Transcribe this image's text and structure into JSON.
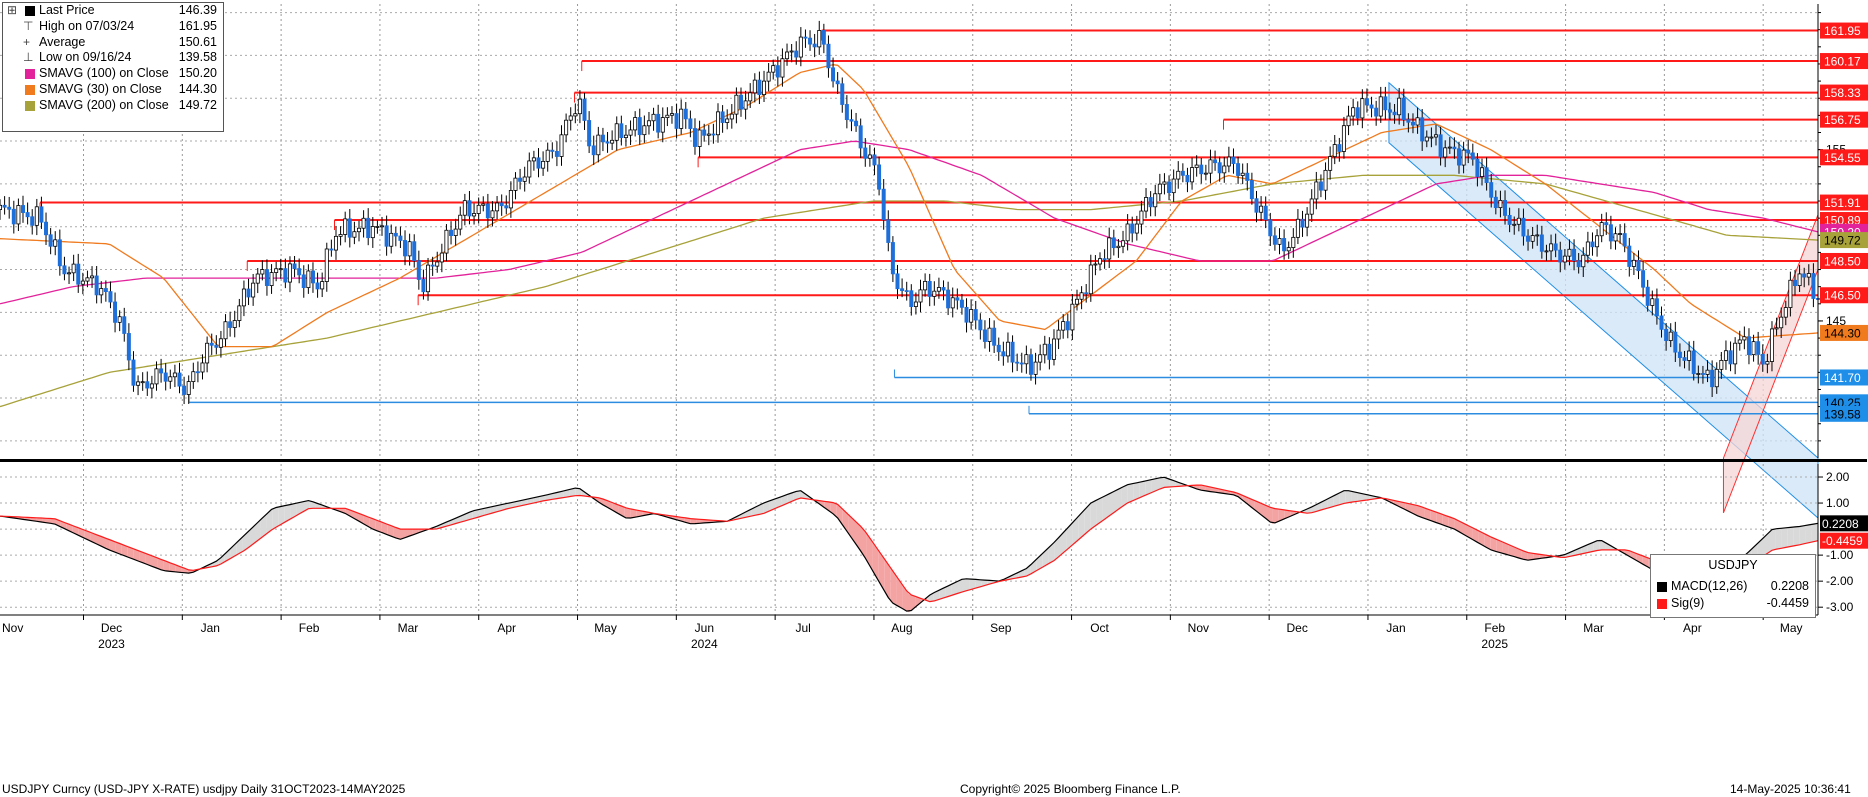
{
  "chart_data": {
    "type": "candlestick",
    "instrument": "USDJPY",
    "legend": {
      "last_price": {
        "label": "Last Price",
        "value": "146.39"
      },
      "high": {
        "label": "High on 07/03/24",
        "value": "161.95"
      },
      "average": {
        "label": "Average",
        "value": "150.61"
      },
      "low": {
        "label": "Low on 09/16/24",
        "value": "139.58"
      },
      "sma100": {
        "label": "SMAVG (100)  on Close",
        "value": "150.20",
        "color": "#e2229a"
      },
      "sma30": {
        "label": "SMAVG (30)  on Close",
        "value": "144.30",
        "color": "#f07a1e"
      },
      "sma200": {
        "label": "SMAVG (200)  on Close",
        "value": "149.72",
        "color": "#a7a23a"
      }
    },
    "price_axis": {
      "ylim": [
        137.0,
        163.5
      ],
      "ticks": [
        "145",
        "155"
      ],
      "tags": [
        {
          "label": "161.95",
          "value": 161.95,
          "color": "#ff1a1a",
          "text_color": "#ffffff"
        },
        {
          "label": "160.17",
          "value": 160.17,
          "color": "#ff1a1a",
          "text_color": "#ffffff"
        },
        {
          "label": "158.33",
          "value": 158.33,
          "color": "#ff1a1a",
          "text_color": "#ffffff"
        },
        {
          "label": "156.75",
          "value": 156.75,
          "color": "#ff1a1a",
          "text_color": "#ffffff"
        },
        {
          "label": "154.55",
          "value": 154.55,
          "color": "#ff1a1a",
          "text_color": "#ffffff"
        },
        {
          "label": "151.91",
          "value": 151.91,
          "color": "#ff1a1a",
          "text_color": "#ffffff"
        },
        {
          "label": "150.89",
          "value": 150.89,
          "color": "#ff1a1a",
          "text_color": "#ffffff"
        },
        {
          "label": "150.20",
          "value": 150.2,
          "color": "#e2229a",
          "text_color": "#ffffff"
        },
        {
          "label": "149.72",
          "value": 149.72,
          "color": "#a7a23a",
          "text_color": "#000000"
        },
        {
          "label": "148.50",
          "value": 148.5,
          "color": "#ff1a1a",
          "text_color": "#ffffff"
        },
        {
          "label": "146.50",
          "value": 146.5,
          "color": "#ff1a1a",
          "text_color": "#ffffff"
        },
        {
          "label": "144.30",
          "value": 144.3,
          "color": "#f07a1e",
          "text_color": "#000000"
        },
        {
          "label": "141.70",
          "value": 141.7,
          "color": "#1e8ee8",
          "text_color": "#ffffff"
        },
        {
          "label": "140.25",
          "value": 140.25,
          "color": "#1e8ee8",
          "text_color": "#000000"
        },
        {
          "label": "139.58",
          "value": 139.58,
          "color": "#1e8ee8",
          "text_color": "#000000"
        }
      ]
    },
    "horizontal_levels": [
      {
        "value": 161.95,
        "from": 0.452,
        "color": "#ff1a1a"
      },
      {
        "value": 160.17,
        "from": 0.32,
        "color": "#ff1a1a"
      },
      {
        "value": 158.33,
        "from": 0.316,
        "color": "#ff1a1a"
      },
      {
        "value": 156.75,
        "from": 0.673,
        "color": "#ff1a1a"
      },
      {
        "value": 154.55,
        "from": 0.384,
        "color": "#ff1a1a"
      },
      {
        "value": 151.91,
        "from": 0.022,
        "color": "#ff1a1a"
      },
      {
        "value": 150.89,
        "from": 0.184,
        "color": "#ff1a1a"
      },
      {
        "value": 148.5,
        "from": 0.136,
        "color": "#ff1a1a"
      },
      {
        "value": 146.5,
        "from": 0.23,
        "color": "#ff1a1a"
      },
      {
        "value": 141.7,
        "from": 0.492,
        "color": "#2b8ce0"
      },
      {
        "value": 140.25,
        "from": 0.104,
        "color": "#2b8ce0"
      },
      {
        "value": 139.58,
        "from": 0.566,
        "color": "#2b8ce0"
      }
    ],
    "channels": [
      {
        "color": "#1e8ee8",
        "fill": "#cfe3f7",
        "p1": [
          0.764,
          158.9
        ],
        "p2": [
          1.0,
          137.0
        ],
        "width": 3.5
      },
      {
        "color": "#ff3030",
        "fill": "#f7d6d6",
        "p1": [
          0.948,
          137.0
        ],
        "p2": [
          1.0,
          151.2
        ],
        "width": 3.2
      }
    ],
    "x_axis": {
      "month_labels": [
        "Nov",
        "Dec",
        "Jan",
        "Feb",
        "Mar",
        "Apr",
        "May",
        "Jun",
        "Jul",
        "Aug",
        "Sep",
        "Oct",
        "Nov",
        "Dec",
        "Jan",
        "Feb",
        "Mar",
        "Apr",
        "May"
      ],
      "year_labels": [
        {
          "label": "2023",
          "month_index": 1
        },
        {
          "label": "2024",
          "month_index": 7
        },
        {
          "label": "2025",
          "month_index": 15
        }
      ]
    },
    "price_anchors": [
      [
        0.0,
        151.5
      ],
      [
        0.022,
        151.0
      ],
      [
        0.035,
        148.0
      ],
      [
        0.055,
        147.0
      ],
      [
        0.066,
        145.0
      ],
      [
        0.075,
        141.0
      ],
      [
        0.09,
        142.0
      ],
      [
        0.103,
        141.0
      ],
      [
        0.112,
        143.0
      ],
      [
        0.125,
        144.5
      ],
      [
        0.14,
        147.5
      ],
      [
        0.16,
        148.0
      ],
      [
        0.175,
        147.0
      ],
      [
        0.185,
        150.2
      ],
      [
        0.205,
        150.5
      ],
      [
        0.225,
        149.3
      ],
      [
        0.232,
        147.0
      ],
      [
        0.242,
        149.0
      ],
      [
        0.255,
        151.5
      ],
      [
        0.275,
        151.5
      ],
      [
        0.29,
        154.0
      ],
      [
        0.305,
        154.8
      ],
      [
        0.318,
        158.0
      ],
      [
        0.325,
        155.0
      ],
      [
        0.335,
        155.7
      ],
      [
        0.355,
        156.5
      ],
      [
        0.375,
        157.0
      ],
      [
        0.384,
        155.5
      ],
      [
        0.4,
        157.0
      ],
      [
        0.42,
        159.0
      ],
      [
        0.44,
        161.2
      ],
      [
        0.452,
        161.5
      ],
      [
        0.46,
        158.5
      ],
      [
        0.475,
        155.0
      ],
      [
        0.483,
        153.5
      ],
      [
        0.49,
        148.0
      ],
      [
        0.5,
        146.0
      ],
      [
        0.51,
        147.0
      ],
      [
        0.52,
        146.5
      ],
      [
        0.532,
        145.5
      ],
      [
        0.548,
        143.5
      ],
      [
        0.566,
        142.3
      ],
      [
        0.578,
        143.5
      ],
      [
        0.592,
        146.0
      ],
      [
        0.605,
        148.8
      ],
      [
        0.62,
        150.0
      ],
      [
        0.635,
        152.5
      ],
      [
        0.65,
        153.5
      ],
      [
        0.665,
        154.0
      ],
      [
        0.68,
        154.2
      ],
      [
        0.69,
        152.0
      ],
      [
        0.705,
        149.0
      ],
      [
        0.715,
        150.5
      ],
      [
        0.73,
        154.0
      ],
      [
        0.745,
        157.5
      ],
      [
        0.755,
        157.5
      ],
      [
        0.77,
        157.3
      ],
      [
        0.78,
        156.2
      ],
      [
        0.795,
        155.0
      ],
      [
        0.81,
        154.5
      ],
      [
        0.825,
        151.5
      ],
      [
        0.84,
        150.0
      ],
      [
        0.855,
        149.0
      ],
      [
        0.87,
        148.5
      ],
      [
        0.88,
        150.5
      ],
      [
        0.89,
        150.0
      ],
      [
        0.9,
        148.0
      ],
      [
        0.91,
        145.5
      ],
      [
        0.92,
        143.5
      ],
      [
        0.93,
        142.5
      ],
      [
        0.94,
        141.5
      ],
      [
        0.95,
        143.0
      ],
      [
        0.96,
        144.0
      ],
      [
        0.97,
        142.5
      ],
      [
        0.98,
        145.5
      ],
      [
        0.99,
        148.0
      ],
      [
        0.996,
        147.0
      ],
      [
        1.0,
        146.39
      ]
    ],
    "sma30_anchors": [
      [
        0.0,
        149.8
      ],
      [
        0.06,
        149.5
      ],
      [
        0.09,
        147.5
      ],
      [
        0.12,
        143.5
      ],
      [
        0.15,
        143.5
      ],
      [
        0.18,
        145.5
      ],
      [
        0.22,
        147.5
      ],
      [
        0.26,
        150.0
      ],
      [
        0.3,
        152.5
      ],
      [
        0.34,
        155.0
      ],
      [
        0.38,
        156.0
      ],
      [
        0.41,
        157.5
      ],
      [
        0.44,
        159.5
      ],
      [
        0.46,
        160.0
      ],
      [
        0.475,
        158.5
      ],
      [
        0.5,
        154.0
      ],
      [
        0.525,
        148.0
      ],
      [
        0.55,
        145.0
      ],
      [
        0.575,
        144.5
      ],
      [
        0.6,
        146.5
      ],
      [
        0.625,
        148.5
      ],
      [
        0.65,
        152.0
      ],
      [
        0.675,
        153.5
      ],
      [
        0.7,
        153.0
      ],
      [
        0.73,
        154.5
      ],
      [
        0.76,
        156.0
      ],
      [
        0.79,
        156.5
      ],
      [
        0.82,
        155.0
      ],
      [
        0.85,
        153.0
      ],
      [
        0.88,
        150.5
      ],
      [
        0.91,
        148.0
      ],
      [
        0.93,
        146.0
      ],
      [
        0.96,
        144.0
      ],
      [
        1.0,
        144.3
      ]
    ],
    "sma100_anchors": [
      [
        0.0,
        146.0
      ],
      [
        0.04,
        147.0
      ],
      [
        0.08,
        147.5
      ],
      [
        0.12,
        147.5
      ],
      [
        0.16,
        147.5
      ],
      [
        0.2,
        147.5
      ],
      [
        0.24,
        147.5
      ],
      [
        0.28,
        148.0
      ],
      [
        0.32,
        149.0
      ],
      [
        0.36,
        151.0
      ],
      [
        0.4,
        153.0
      ],
      [
        0.44,
        155.0
      ],
      [
        0.47,
        155.5
      ],
      [
        0.5,
        155.0
      ],
      [
        0.54,
        153.5
      ],
      [
        0.58,
        151.0
      ],
      [
        0.62,
        149.5
      ],
      [
        0.66,
        148.5
      ],
      [
        0.7,
        148.5
      ],
      [
        0.73,
        150.0
      ],
      [
        0.76,
        151.5
      ],
      [
        0.79,
        153.0
      ],
      [
        0.82,
        153.5
      ],
      [
        0.85,
        153.5
      ],
      [
        0.88,
        153.0
      ],
      [
        0.91,
        152.5
      ],
      [
        0.94,
        151.5
      ],
      [
        0.97,
        151.0
      ],
      [
        1.0,
        150.2
      ]
    ],
    "sma200_anchors": [
      [
        0.0,
        140.0
      ],
      [
        0.06,
        142.0
      ],
      [
        0.12,
        143.0
      ],
      [
        0.18,
        144.0
      ],
      [
        0.24,
        145.5
      ],
      [
        0.3,
        147.0
      ],
      [
        0.36,
        149.0
      ],
      [
        0.42,
        151.0
      ],
      [
        0.48,
        152.0
      ],
      [
        0.52,
        152.0
      ],
      [
        0.56,
        151.5
      ],
      [
        0.6,
        151.5
      ],
      [
        0.65,
        152.0
      ],
      [
        0.7,
        153.0
      ],
      [
        0.75,
        153.5
      ],
      [
        0.8,
        153.5
      ],
      [
        0.85,
        153.0
      ],
      [
        0.9,
        151.5
      ],
      [
        0.95,
        150.0
      ],
      [
        1.0,
        149.72
      ]
    ],
    "macd": {
      "title": "USDJPY",
      "ylim": [
        -3.3,
        2.5
      ],
      "ticks": [
        "2.00",
        "1.00",
        "-1.00",
        "-2.00",
        "-3.00"
      ],
      "macd_label": "MACD(12,26)",
      "macd_value": "0.2208",
      "macd_color": "#000000",
      "sig_label": "Sig(9)",
      "sig_value": "-0.4459",
      "sig_color": "#ff1a1a",
      "tags": [
        {
          "label": "0.2208",
          "value": 0.2208,
          "color": "#000000",
          "text_color": "#ffffff"
        },
        {
          "label": "-0.4459",
          "value": -0.4459,
          "color": "#ff1a1a",
          "text_color": "#ffffff"
        }
      ],
      "macd_anchors": [
        [
          0.0,
          0.5
        ],
        [
          0.03,
          0.2
        ],
        [
          0.06,
          -0.8
        ],
        [
          0.09,
          -1.6
        ],
        [
          0.105,
          -1.7
        ],
        [
          0.12,
          -1.2
        ],
        [
          0.135,
          -0.2
        ],
        [
          0.15,
          0.8
        ],
        [
          0.17,
          1.1
        ],
        [
          0.19,
          0.6
        ],
        [
          0.205,
          0.0
        ],
        [
          0.22,
          -0.4
        ],
        [
          0.24,
          0.1
        ],
        [
          0.26,
          0.7
        ],
        [
          0.28,
          1.0
        ],
        [
          0.3,
          1.3
        ],
        [
          0.318,
          1.6
        ],
        [
          0.33,
          1.0
        ],
        [
          0.345,
          0.4
        ],
        [
          0.36,
          0.6
        ],
        [
          0.38,
          0.2
        ],
        [
          0.4,
          0.3
        ],
        [
          0.42,
          1.0
        ],
        [
          0.44,
          1.5
        ],
        [
          0.46,
          0.5
        ],
        [
          0.475,
          -1.0
        ],
        [
          0.49,
          -2.8
        ],
        [
          0.5,
          -3.2
        ],
        [
          0.512,
          -2.5
        ],
        [
          0.53,
          -1.9
        ],
        [
          0.55,
          -2.0
        ],
        [
          0.565,
          -1.5
        ],
        [
          0.58,
          -0.5
        ],
        [
          0.6,
          1.0
        ],
        [
          0.62,
          1.7
        ],
        [
          0.64,
          2.0
        ],
        [
          0.66,
          1.5
        ],
        [
          0.68,
          1.3
        ],
        [
          0.7,
          0.2
        ],
        [
          0.72,
          0.8
        ],
        [
          0.74,
          1.5
        ],
        [
          0.76,
          1.2
        ],
        [
          0.78,
          0.5
        ],
        [
          0.8,
          0.0
        ],
        [
          0.82,
          -0.8
        ],
        [
          0.84,
          -1.2
        ],
        [
          0.86,
          -1.0
        ],
        [
          0.88,
          -0.4
        ],
        [
          0.895,
          -1.0
        ],
        [
          0.91,
          -1.6
        ],
        [
          0.925,
          -2.1
        ],
        [
          0.94,
          -1.9
        ],
        [
          0.96,
          -1.0
        ],
        [
          0.975,
          0.0
        ],
        [
          0.99,
          0.1
        ],
        [
          1.0,
          0.2208
        ]
      ],
      "sig_anchors": [
        [
          0.0,
          0.5
        ],
        [
          0.03,
          0.4
        ],
        [
          0.06,
          -0.4
        ],
        [
          0.09,
          -1.2
        ],
        [
          0.105,
          -1.6
        ],
        [
          0.12,
          -1.4
        ],
        [
          0.135,
          -0.8
        ],
        [
          0.15,
          0.0
        ],
        [
          0.17,
          0.8
        ],
        [
          0.19,
          0.8
        ],
        [
          0.205,
          0.4
        ],
        [
          0.22,
          0.0
        ],
        [
          0.24,
          0.0
        ],
        [
          0.26,
          0.4
        ],
        [
          0.28,
          0.8
        ],
        [
          0.3,
          1.1
        ],
        [
          0.318,
          1.3
        ],
        [
          0.33,
          1.2
        ],
        [
          0.345,
          0.8
        ],
        [
          0.36,
          0.6
        ],
        [
          0.38,
          0.4
        ],
        [
          0.4,
          0.3
        ],
        [
          0.42,
          0.6
        ],
        [
          0.44,
          1.2
        ],
        [
          0.46,
          1.0
        ],
        [
          0.475,
          0.0
        ],
        [
          0.49,
          -1.5
        ],
        [
          0.5,
          -2.5
        ],
        [
          0.512,
          -2.8
        ],
        [
          0.53,
          -2.4
        ],
        [
          0.55,
          -2.0
        ],
        [
          0.565,
          -1.8
        ],
        [
          0.58,
          -1.2
        ],
        [
          0.6,
          0.0
        ],
        [
          0.62,
          1.0
        ],
        [
          0.64,
          1.6
        ],
        [
          0.66,
          1.7
        ],
        [
          0.68,
          1.4
        ],
        [
          0.7,
          0.8
        ],
        [
          0.72,
          0.6
        ],
        [
          0.74,
          1.0
        ],
        [
          0.76,
          1.2
        ],
        [
          0.78,
          0.9
        ],
        [
          0.8,
          0.4
        ],
        [
          0.82,
          -0.3
        ],
        [
          0.84,
          -0.9
        ],
        [
          0.86,
          -1.1
        ],
        [
          0.88,
          -0.8
        ],
        [
          0.895,
          -0.8
        ],
        [
          0.91,
          -1.2
        ],
        [
          0.925,
          -1.7
        ],
        [
          0.94,
          -1.9
        ],
        [
          0.96,
          -1.5
        ],
        [
          0.975,
          -0.8
        ],
        [
          0.99,
          -0.6
        ],
        [
          1.0,
          -0.4459
        ]
      ]
    }
  },
  "footer": {
    "left": "USDJPY Curncy (USD-JPY X-RATE) usdjpy  Daily 31OCT2023-14MAY2025",
    "center": "Copyright© 2025 Bloomberg Finance L.P.",
    "right": "14-May-2025 10:36:41"
  }
}
